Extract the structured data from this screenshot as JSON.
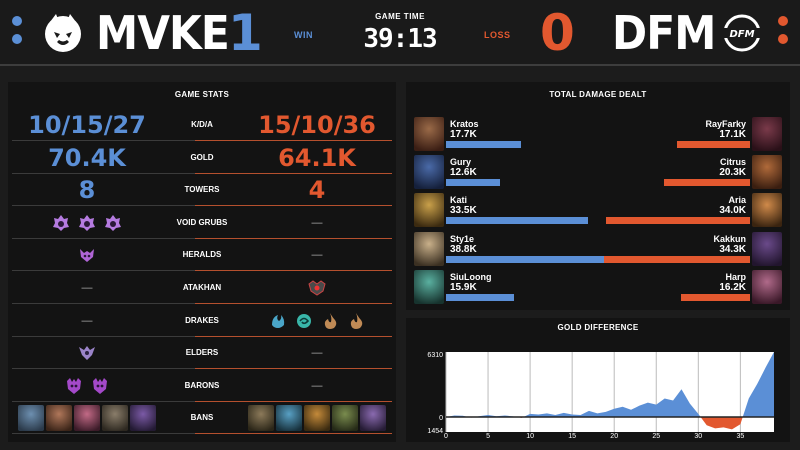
{
  "header": {
    "left_team": {
      "name": "MVKE",
      "score": "1",
      "result": "WIN"
    },
    "right_team": {
      "name": "DFM",
      "score": "0",
      "result": "LOSS"
    },
    "game_time_label": "GAME TIME",
    "game_time": "39:13",
    "colors": {
      "blue": "#5b8fd6",
      "orange": "#e2582f"
    }
  },
  "game_stats": {
    "title": "GAME STATS",
    "rows": [
      {
        "label": "K/D/A",
        "left": "10/15/27",
        "right": "15/10/36"
      },
      {
        "label": "GOLD",
        "left": "70.4K",
        "right": "64.1K"
      },
      {
        "label": "TOWERS",
        "left": "8",
        "right": "4"
      },
      {
        "label": "VOID GRUBS",
        "left_icons": [
          "void-grub-icon",
          "void-grub-icon",
          "void-grub-icon"
        ],
        "right": "—"
      },
      {
        "label": "HERALDS",
        "left_icons": [
          "herald-icon"
        ],
        "right": "—"
      },
      {
        "label": "ATAKHAN",
        "left": "—",
        "right_icons": [
          "atakhan-icon"
        ]
      },
      {
        "label": "DRAKES",
        "left": "—",
        "right_icons": [
          "ocean-drake-icon",
          "hextech-drake-icon",
          "infernal-drake-icon",
          "infernal-drake-icon"
        ]
      },
      {
        "label": "ELDERS",
        "left_icons": [
          "elder-drake-icon"
        ],
        "right": "—"
      },
      {
        "label": "BARONS",
        "left_icons": [
          "baron-icon",
          "baron-icon"
        ],
        "right": "—"
      },
      {
        "label": "BANS",
        "left_bans": [
          "champion-ban-1",
          "champion-ban-2",
          "champion-ban-3",
          "champion-ban-4",
          "champion-ban-5"
        ],
        "right_bans": [
          "champion-ban-6",
          "champion-ban-7",
          "champion-ban-8",
          "champion-ban-9",
          "champion-ban-10"
        ]
      }
    ]
  },
  "damage": {
    "title": "TOTAL DAMAGE DEALT",
    "max": 40000,
    "rows": [
      {
        "left_name": "Kratos",
        "left_val": "17.7K",
        "left_num": 17700,
        "right_name": "RayFarky",
        "right_val": "17.1K",
        "right_num": 17100
      },
      {
        "left_name": "Gury",
        "left_val": "12.6K",
        "left_num": 12600,
        "right_name": "Citrus",
        "right_val": "20.3K",
        "right_num": 20300
      },
      {
        "left_name": "Kati",
        "left_val": "33.5K",
        "left_num": 33500,
        "right_name": "Aria",
        "right_val": "34.0K",
        "right_num": 34000
      },
      {
        "left_name": "Sty1e",
        "left_val": "38.8K",
        "left_num": 38800,
        "right_name": "Kakkun",
        "right_val": "34.3K",
        "right_num": 34300
      },
      {
        "left_name": "SiuLoong",
        "left_val": "15.9K",
        "left_num": 15900,
        "right_name": "Harp",
        "right_val": "16.2K",
        "right_num": 16200
      }
    ]
  },
  "gold_diff": {
    "title": "GOLD DIFFERENCE",
    "y_max_label": "6310",
    "y_zero_label": "0",
    "y_min_label": "1454",
    "ymax": 6310,
    "ymin": -1454,
    "x_ticks": [
      "0",
      "5",
      "10",
      "15",
      "20",
      "25",
      "30",
      "35"
    ],
    "x_max": 39,
    "series": [
      [
        0,
        0
      ],
      [
        1,
        150
      ],
      [
        2,
        120
      ],
      [
        3,
        -60
      ],
      [
        4,
        90
      ],
      [
        5,
        200
      ],
      [
        6,
        80
      ],
      [
        7,
        150
      ],
      [
        8,
        60
      ],
      [
        9,
        -80
      ],
      [
        10,
        300
      ],
      [
        11,
        250
      ],
      [
        12,
        350
      ],
      [
        13,
        200
      ],
      [
        14,
        400
      ],
      [
        15,
        250
      ],
      [
        16,
        200
      ],
      [
        17,
        600
      ],
      [
        18,
        350
      ],
      [
        19,
        500
      ],
      [
        20,
        800
      ],
      [
        21,
        1000
      ],
      [
        22,
        700
      ],
      [
        23,
        1100
      ],
      [
        24,
        1400
      ],
      [
        25,
        1200
      ],
      [
        26,
        1800
      ],
      [
        27,
        1600
      ],
      [
        28,
        2700
      ],
      [
        29,
        1300
      ],
      [
        30,
        300
      ],
      [
        31,
        -800
      ],
      [
        32,
        -1100
      ],
      [
        33,
        -1000
      ],
      [
        34,
        -1200
      ],
      [
        35,
        -700
      ],
      [
        36,
        1800
      ],
      [
        37,
        3200
      ],
      [
        38,
        4800
      ],
      [
        39,
        6310
      ]
    ]
  }
}
